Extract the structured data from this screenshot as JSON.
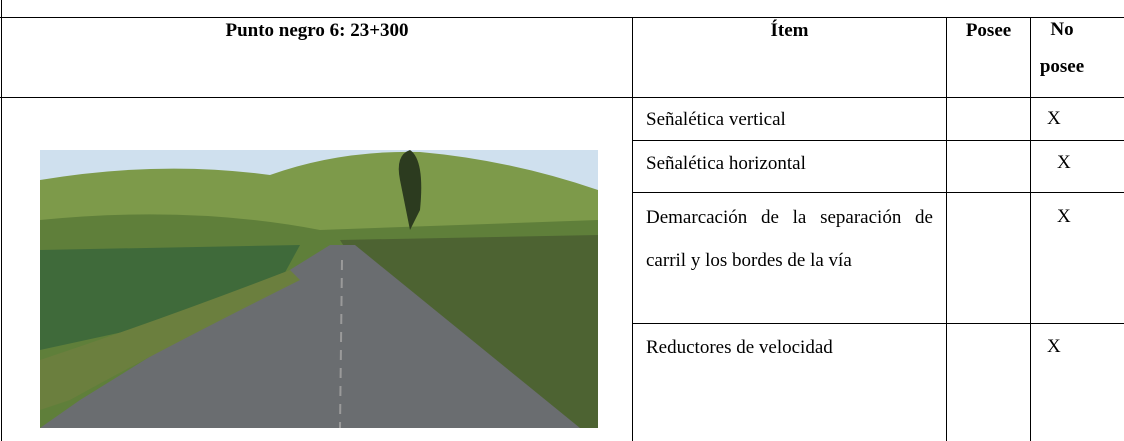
{
  "table": {
    "header": [
      "Punto negro 6: 23+300",
      "Ítem",
      "Posee",
      "No posee"
    ],
    "rows": [
      {
        "item": "Señalética vertical",
        "no_posee": "X"
      },
      {
        "item": "Señalética horizontal",
        "no_posee": "X"
      },
      {
        "item": "Demarcación de la separación de carril y los bordes de la vía",
        "no_posee": "X"
      },
      {
        "item": "Reductores de velocidad",
        "no_posee": "X"
      }
    ]
  }
}
